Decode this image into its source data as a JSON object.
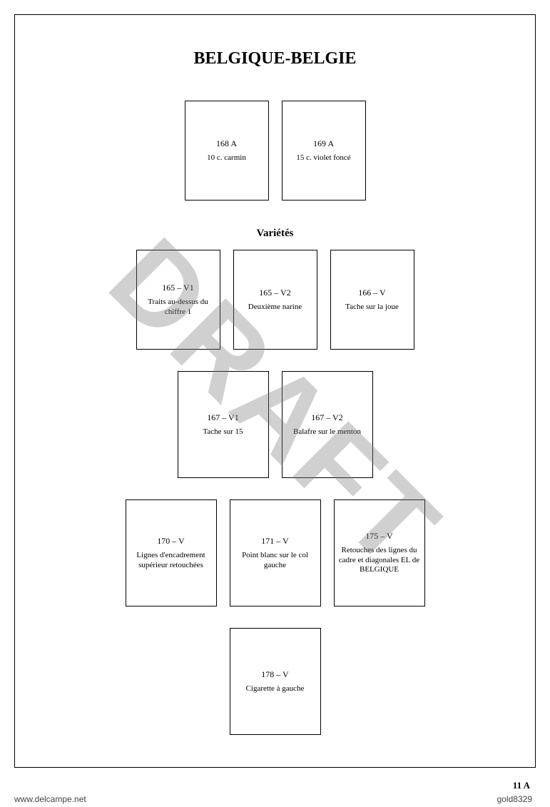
{
  "title": "BELGIQUE-BELGIE",
  "section_header": "Variétés",
  "watermark": "DRAFT",
  "page_number": "11 A",
  "footer_site": "www.delcampe.net",
  "footer_user": "gold8329",
  "rows": {
    "r1": [
      {
        "code": "168 A",
        "desc": "10 c. carmin"
      },
      {
        "code": "169 A",
        "desc": "15 c. violet foncé"
      }
    ],
    "r2": [
      {
        "code": "165 – V1",
        "desc": "Traits au-dessus du chiffre 1"
      },
      {
        "code": "165 – V2",
        "desc": "Deuxième narine"
      },
      {
        "code": "166 – V",
        "desc": "Tache sur la joue"
      }
    ],
    "r3": [
      {
        "code": "167 – V1",
        "desc": "Tache sur 15"
      },
      {
        "code": "167 – V2",
        "desc": "Balafre sur le menton"
      }
    ],
    "r4": [
      {
        "code": "170 – V",
        "desc": "Lignes d'encadrement supérieur retouchées"
      },
      {
        "code": "171 – V",
        "desc": "Point blanc sur le col gauche"
      },
      {
        "code": "175 – V",
        "desc": "Retouches des lignes du cadre et diagonales EL de BELGIQUE"
      }
    ],
    "r5": [
      {
        "code": "178 – V",
        "desc": "Cigarette à gauche"
      }
    ]
  }
}
